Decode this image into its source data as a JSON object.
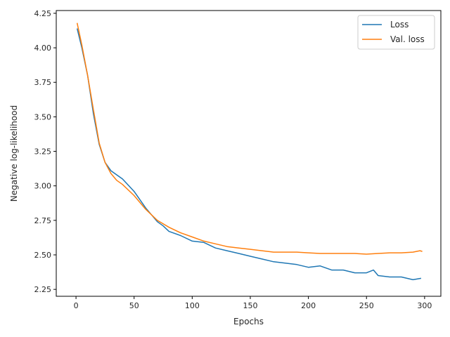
{
  "chart_data": {
    "type": "line",
    "title": "",
    "xlabel": "Epochs",
    "ylabel": "Negative log-likelihood",
    "xlim": [
      -17,
      314
    ],
    "ylim": [
      2.2,
      4.27
    ],
    "xticks": [
      0,
      50,
      100,
      150,
      200,
      250,
      300
    ],
    "yticks": [
      2.25,
      2.5,
      2.75,
      3.0,
      3.25,
      3.5,
      3.75,
      4.0,
      4.25
    ],
    "grid": false,
    "legend_position": "top-right",
    "series": [
      {
        "name": "Loss",
        "color": "#1f77b4",
        "x": [
          1,
          5,
          10,
          15,
          20,
          25,
          30,
          35,
          40,
          50,
          60,
          70,
          75,
          80,
          90,
          100,
          110,
          120,
          130,
          140,
          150,
          160,
          170,
          180,
          190,
          200,
          210,
          220,
          230,
          240,
          250,
          256,
          260,
          270,
          280,
          290,
          297
        ],
        "y": [
          4.14,
          4.0,
          3.8,
          3.52,
          3.3,
          3.17,
          3.11,
          3.08,
          3.05,
          2.96,
          2.84,
          2.74,
          2.71,
          2.67,
          2.64,
          2.6,
          2.59,
          2.55,
          2.53,
          2.51,
          2.49,
          2.47,
          2.45,
          2.44,
          2.43,
          2.41,
          2.42,
          2.39,
          2.39,
          2.37,
          2.37,
          2.39,
          2.35,
          2.34,
          2.34,
          2.32,
          2.33
        ]
      },
      {
        "name": "Val. loss",
        "color": "#ff7f0e",
        "x": [
          1,
          5,
          10,
          15,
          20,
          25,
          30,
          35,
          40,
          50,
          60,
          70,
          80,
          90,
          100,
          110,
          120,
          130,
          140,
          150,
          160,
          170,
          180,
          190,
          200,
          210,
          220,
          230,
          240,
          250,
          260,
          270,
          280,
          290,
          296,
          298
        ],
        "y": [
          4.18,
          4.02,
          3.8,
          3.55,
          3.31,
          3.17,
          3.09,
          3.04,
          3.01,
          2.93,
          2.83,
          2.75,
          2.7,
          2.66,
          2.63,
          2.6,
          2.58,
          2.56,
          2.55,
          2.54,
          2.53,
          2.52,
          2.52,
          2.52,
          2.515,
          2.51,
          2.51,
          2.51,
          2.51,
          2.505,
          2.51,
          2.515,
          2.515,
          2.52,
          2.53,
          2.525
        ]
      }
    ]
  }
}
